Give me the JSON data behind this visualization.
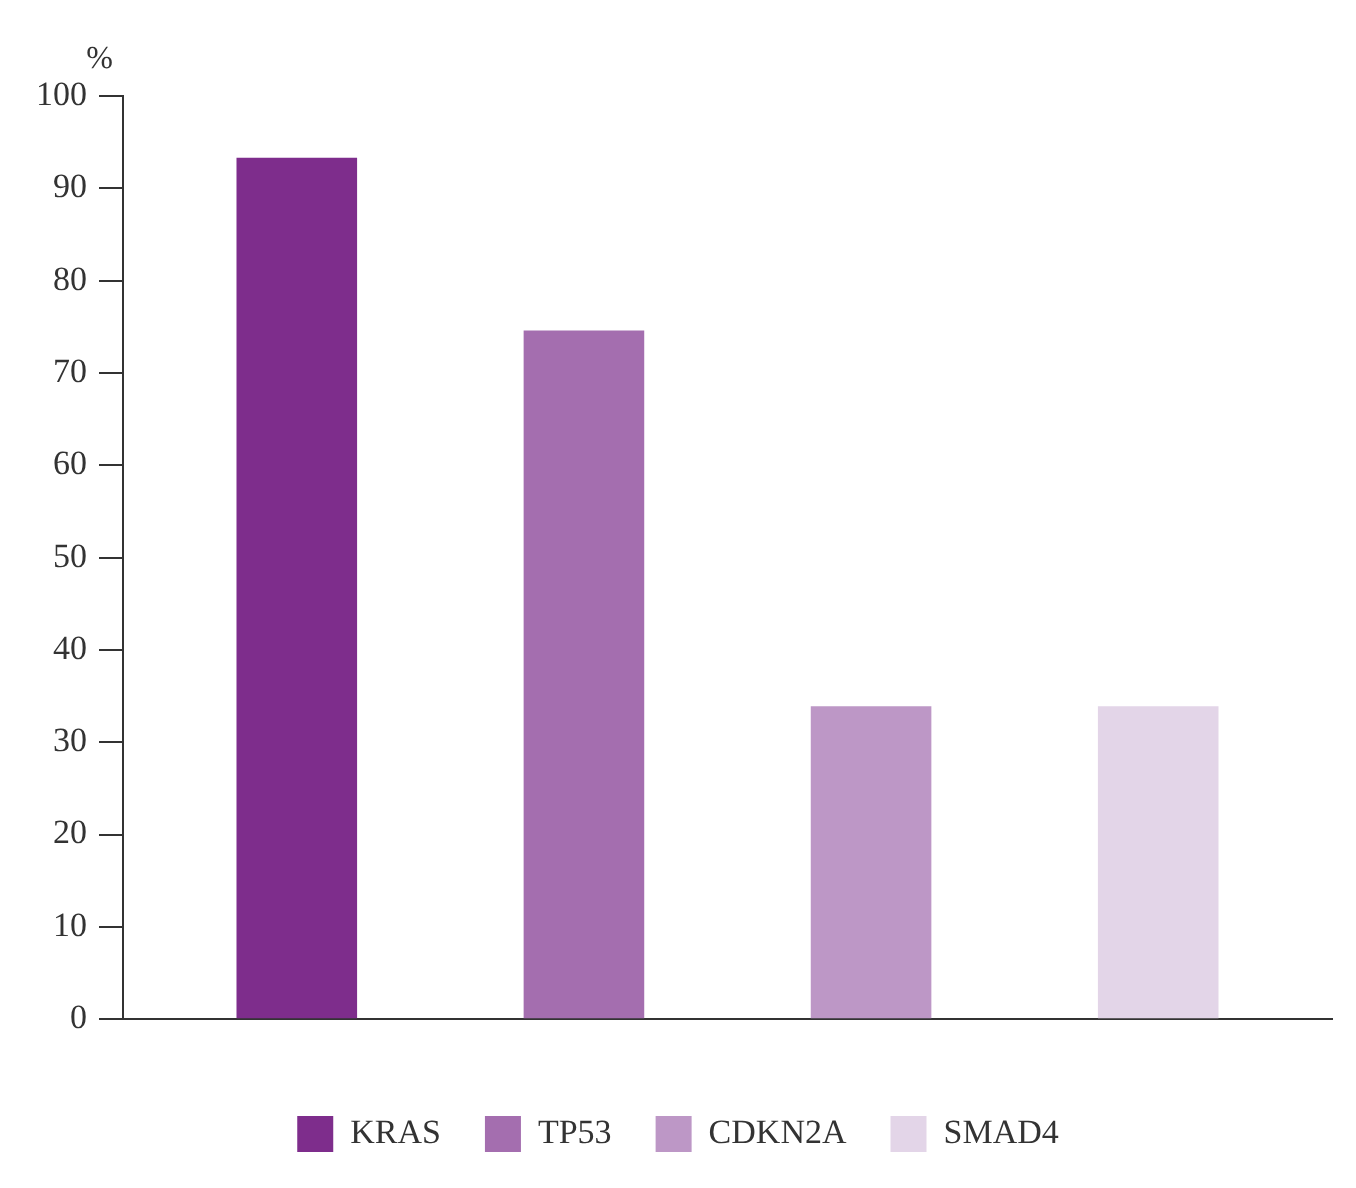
{
  "chart_data": {
    "type": "bar",
    "ylabel": "%",
    "categories": [
      null
    ],
    "series": [
      {
        "name": "KRAS",
        "color": "#7e2d8c",
        "values": [
          93.3
        ]
      },
      {
        "name": "TP53",
        "color": "#a46eaf",
        "values": [
          74.6
        ]
      },
      {
        "name": "CDKN2A",
        "color": "#bd97c6",
        "values": [
          33.9
        ]
      },
      {
        "name": "SMAD4",
        "color": "#e3d5e8",
        "values": [
          33.9
        ]
      }
    ],
    "ylim": [
      0,
      100
    ],
    "yticks": [
      0,
      10,
      20,
      30,
      40,
      50,
      60,
      70,
      80,
      90,
      100
    ],
    "grid": false,
    "legend": "bottom"
  }
}
